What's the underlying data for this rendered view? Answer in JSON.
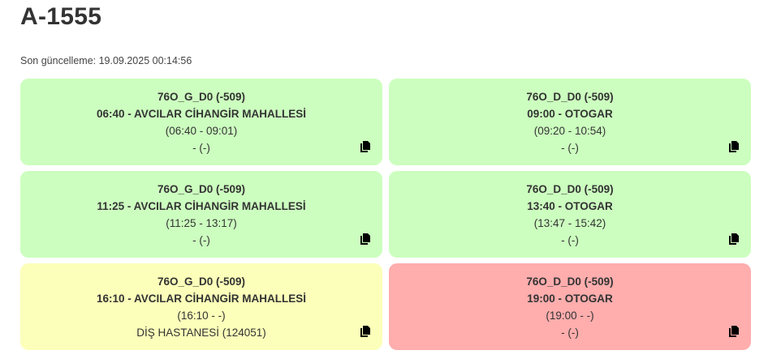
{
  "title": "A-1555",
  "last_updated": "Son güncelleme: 19.09.2025 00:14:56",
  "colors": {
    "completed": "#ccffbf",
    "in_progress": "#fbffb9",
    "pending": "#ffadad"
  },
  "trips": [
    {
      "route": "76O_G_D0 (-509)",
      "departure": "06:40 - AVCILAR CİHANGİR MAHALLESİ",
      "times": "(06:40 - 09:01)",
      "stop": "- (-)",
      "status": "completed",
      "icon": "copy-icon"
    },
    {
      "route": "76O_D_D0 (-509)",
      "departure": "09:00 - OTOGAR",
      "times": "(09:20 - 10:54)",
      "stop": "- (-)",
      "status": "completed",
      "icon": "copy-icon"
    },
    {
      "route": "76O_G_D0 (-509)",
      "departure": "11:25 - AVCILAR CİHANGİR MAHALLESİ",
      "times": "(11:25 - 13:17)",
      "stop": "- (-)",
      "status": "completed",
      "icon": "copy-icon"
    },
    {
      "route": "76O_D_D0 (-509)",
      "departure": "13:40 - OTOGAR",
      "times": "(13:47 - 15:42)",
      "stop": "- (-)",
      "status": "completed",
      "icon": "copy-icon"
    },
    {
      "route": "76O_G_D0 (-509)",
      "departure": "16:10 - AVCILAR CİHANGİR MAHALLESİ",
      "times": "(16:10 - -)",
      "stop": "DİŞ HASTANESİ (124051)",
      "status": "in_progress",
      "icon": "copy-icon"
    },
    {
      "route": "76O_D_D0 (-509)",
      "departure": "19:00 - OTOGAR",
      "times": "(19:00 - -)",
      "stop": "- (-)",
      "status": "pending",
      "icon": "copy-icon"
    }
  ]
}
